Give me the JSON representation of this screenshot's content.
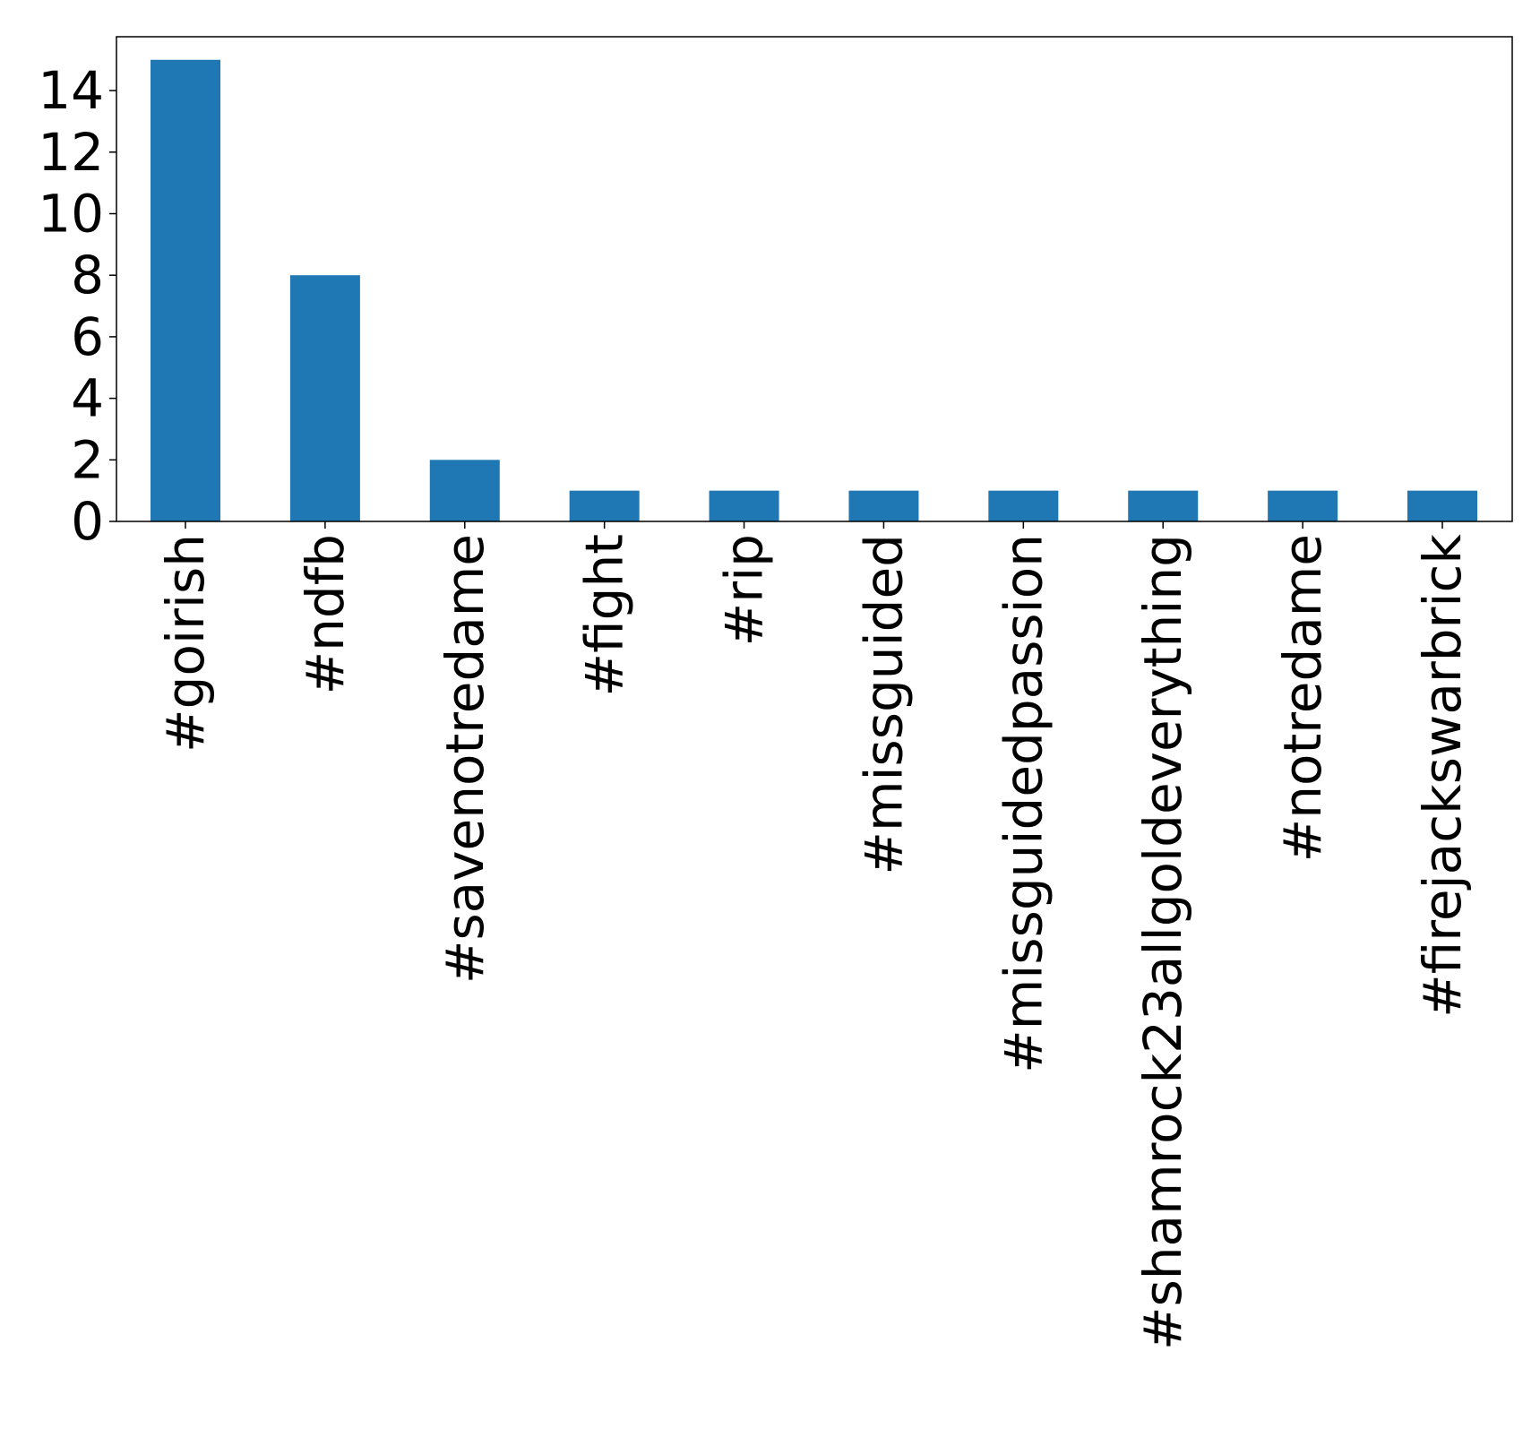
{
  "chart_data": {
    "type": "bar",
    "title": "",
    "xlabel": "",
    "ylabel": "",
    "categories": [
      "#goirish",
      "#ndfb",
      "#savenotredame",
      "#fight",
      "#rip",
      "#missguided",
      "#missguidedpassion",
      "#shamrock23allgoldeverything",
      "#notredame",
      "#firejackswarbrick"
    ],
    "values": [
      15,
      8,
      2,
      1,
      1,
      1,
      1,
      1,
      1,
      1
    ],
    "ylim": [
      0,
      15.75
    ],
    "yticks": [
      0,
      2,
      4,
      6,
      8,
      10,
      12,
      14
    ],
    "bar_color": "#1f77b4",
    "grid": false,
    "legend": "none"
  }
}
